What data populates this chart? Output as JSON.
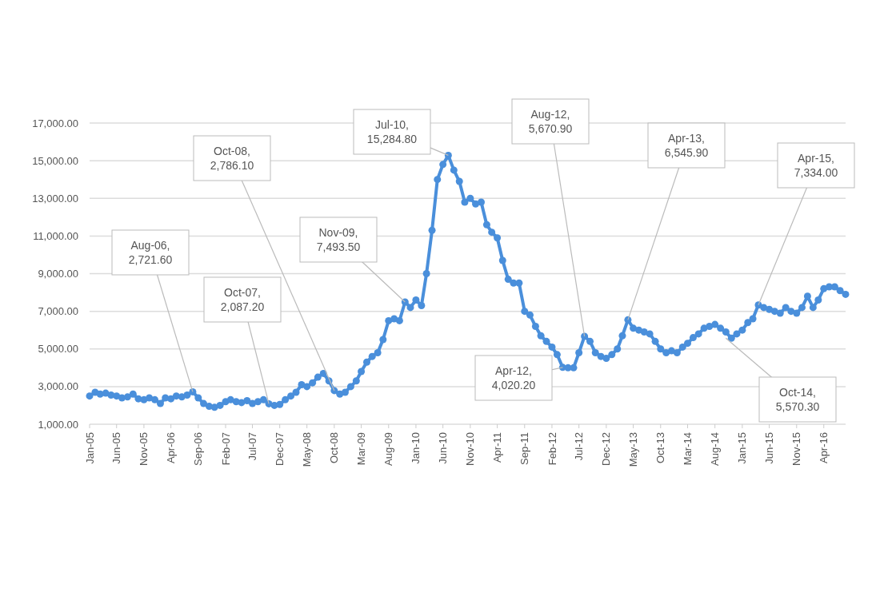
{
  "chart_data": {
    "type": "line",
    "xlim": [
      "2005-01",
      "2016-08"
    ],
    "x": [
      "2005-01",
      "2005-02",
      "2005-03",
      "2005-04",
      "2005-05",
      "2005-06",
      "2005-07",
      "2005-08",
      "2005-09",
      "2005-10",
      "2005-11",
      "2005-12",
      "2006-01",
      "2006-02",
      "2006-03",
      "2006-04",
      "2006-05",
      "2006-06",
      "2006-07",
      "2006-08",
      "2006-09",
      "2006-10",
      "2006-11",
      "2006-12",
      "2007-01",
      "2007-02",
      "2007-03",
      "2007-04",
      "2007-05",
      "2007-06",
      "2007-07",
      "2007-08",
      "2007-09",
      "2007-10",
      "2007-11",
      "2007-12",
      "2008-01",
      "2008-02",
      "2008-03",
      "2008-04",
      "2008-05",
      "2008-06",
      "2008-07",
      "2008-08",
      "2008-09",
      "2008-10",
      "2008-11",
      "2008-12",
      "2009-01",
      "2009-02",
      "2009-03",
      "2009-04",
      "2009-05",
      "2009-06",
      "2009-07",
      "2009-08",
      "2009-09",
      "2009-10",
      "2009-11",
      "2009-12",
      "2010-01",
      "2010-02",
      "2010-03",
      "2010-04",
      "2010-05",
      "2010-06",
      "2010-07",
      "2010-08",
      "2010-09",
      "2010-10",
      "2010-11",
      "2010-12",
      "2011-01",
      "2011-02",
      "2011-03",
      "2011-04",
      "2011-05",
      "2011-06",
      "2011-07",
      "2011-08",
      "2011-09",
      "2011-10",
      "2011-11",
      "2011-12",
      "2012-01",
      "2012-02",
      "2012-03",
      "2012-04",
      "2012-05",
      "2012-06",
      "2012-07",
      "2012-08",
      "2012-09",
      "2012-10",
      "2012-11",
      "2012-12",
      "2013-01",
      "2013-02",
      "2013-03",
      "2013-04",
      "2013-05",
      "2013-06",
      "2013-07",
      "2013-08",
      "2013-09",
      "2013-10",
      "2013-11",
      "2013-12",
      "2014-01",
      "2014-02",
      "2014-03",
      "2014-04",
      "2014-05",
      "2014-06",
      "2014-07",
      "2014-08",
      "2014-09",
      "2014-10",
      "2014-11",
      "2014-12",
      "2015-01",
      "2015-02",
      "2015-03",
      "2015-04",
      "2015-05",
      "2015-06",
      "2015-07",
      "2015-08",
      "2015-09",
      "2015-10",
      "2015-11",
      "2015-12",
      "2016-01",
      "2016-02",
      "2016-03",
      "2016-04",
      "2016-05",
      "2016-06",
      "2016-07",
      "2016-08"
    ],
    "series": [
      {
        "color": "#4a8fdb",
        "values": [
          2500,
          2700,
          2600,
          2650,
          2550,
          2500,
          2400,
          2450,
          2600,
          2350,
          2300,
          2400,
          2300,
          2100,
          2400,
          2350,
          2500,
          2450,
          2550,
          2721.6,
          2400,
          2100,
          1950,
          1900,
          2000,
          2200,
          2300,
          2200,
          2150,
          2250,
          2100,
          2200,
          2300,
          2087.2,
          2000,
          2050,
          2300,
          2500,
          2700,
          3100,
          3000,
          3200,
          3500,
          3700,
          3300,
          2786.1,
          2600,
          2700,
          3000,
          3300,
          3800,
          4300,
          4600,
          4800,
          5500,
          6500,
          6600,
          6500,
          7493.5,
          7200,
          7600,
          7300,
          9000,
          11300,
          14000,
          14800,
          15284.8,
          14500,
          13900,
          12800,
          13000,
          12700,
          12800,
          11600,
          11200,
          10900,
          9700,
          8700,
          8500,
          8500,
          7000,
          6800,
          6200,
          5700,
          5400,
          5100,
          4700,
          4020.2,
          4000,
          4000,
          4800,
          5670.9,
          5400,
          4800,
          4600,
          4500,
          4700,
          5000,
          5700,
          6545.9,
          6100,
          6000,
          5900,
          5800,
          5400,
          5000,
          4800,
          4900,
          4800,
          5100,
          5300,
          5600,
          5800,
          6100,
          6200,
          6300,
          6100,
          5900,
          5570.3,
          5800,
          6000,
          6400,
          6600,
          7334,
          7200,
          7100,
          7000,
          6900,
          7200,
          7000,
          6900,
          7200,
          7800,
          7200,
          7600,
          8200,
          8300,
          8300,
          8100,
          7900
        ]
      }
    ],
    "ylim": [
      1000,
      17000
    ],
    "yticks": [
      {
        "value": 1000,
        "label": "1,000.00"
      },
      {
        "value": 3000,
        "label": "3,000.00"
      },
      {
        "value": 5000,
        "label": "5,000.00"
      },
      {
        "value": 7000,
        "label": "7,000.00"
      },
      {
        "value": 9000,
        "label": "9,000.00"
      },
      {
        "value": 11000,
        "label": "11,000.00"
      },
      {
        "value": 13000,
        "label": "13,000.00"
      },
      {
        "value": 15000,
        "label": "15,000.00"
      },
      {
        "value": 17000,
        "label": "17,000.00"
      }
    ],
    "xticks": [
      {
        "value": "2005-01",
        "label": "Jan-05"
      },
      {
        "value": "2005-06",
        "label": "Jun-05"
      },
      {
        "value": "2005-11",
        "label": "Nov-05"
      },
      {
        "value": "2006-04",
        "label": "Apr-06"
      },
      {
        "value": "2006-09",
        "label": "Sep-06"
      },
      {
        "value": "2007-02",
        "label": "Feb-07"
      },
      {
        "value": "2007-07",
        "label": "Jul-07"
      },
      {
        "value": "2007-12",
        "label": "Dec-07"
      },
      {
        "value": "2008-05",
        "label": "May-08"
      },
      {
        "value": "2008-10",
        "label": "Oct-08"
      },
      {
        "value": "2009-03",
        "label": "Mar-09"
      },
      {
        "value": "2009-08",
        "label": "Aug-09"
      },
      {
        "value": "2010-01",
        "label": "Jan-10"
      },
      {
        "value": "2010-06",
        "label": "Jun-10"
      },
      {
        "value": "2010-11",
        "label": "Nov-10"
      },
      {
        "value": "2011-04",
        "label": "Apr-11"
      },
      {
        "value": "2011-09",
        "label": "Sep-11"
      },
      {
        "value": "2012-02",
        "label": "Feb-12"
      },
      {
        "value": "2012-07",
        "label": "Jul-12"
      },
      {
        "value": "2012-12",
        "label": "Dec-12"
      },
      {
        "value": "2013-05",
        "label": "May-13"
      },
      {
        "value": "2013-10",
        "label": "Oct-13"
      },
      {
        "value": "2014-03",
        "label": "Mar-14"
      },
      {
        "value": "2014-08",
        "label": "Aug-14"
      },
      {
        "value": "2015-01",
        "label": "Jan-15"
      },
      {
        "value": "2015-06",
        "label": "Jun-15"
      },
      {
        "value": "2015-11",
        "label": "Nov-15"
      },
      {
        "value": "2016-04",
        "label": "Apr-16"
      }
    ],
    "grid": "y",
    "marker": "circle",
    "line_style": "solid",
    "annotations": [
      {
        "text": "Aug-06, 2,721.60",
        "x": "2006-08",
        "y": 2721.6
      },
      {
        "text": "Oct-07, 2,087.20",
        "x": "2007-10",
        "y": 2087.2
      },
      {
        "text": "Oct-08, 2,786.10",
        "x": "2008-10",
        "y": 2786.1
      },
      {
        "text": "Nov-09, 7,493.50",
        "x": "2009-11",
        "y": 7493.5
      },
      {
        "text": "Jul-10, 15,284.80",
        "x": "2010-07",
        "y": 15284.8
      },
      {
        "text": "Apr-12, 4,020.20",
        "x": "2012-04",
        "y": 4020.2
      },
      {
        "text": "Aug-12, 5,670.90",
        "x": "2012-08",
        "y": 5670.9
      },
      {
        "text": "Apr-13, 6,545.90",
        "x": "2013-04",
        "y": 6545.9
      },
      {
        "text": "Oct-14, 5,570.30",
        "x": "2014-10",
        "y": 5570.3
      },
      {
        "text": "Apr-15, 7,334.00",
        "x": "2015-04",
        "y": 7334
      }
    ]
  }
}
